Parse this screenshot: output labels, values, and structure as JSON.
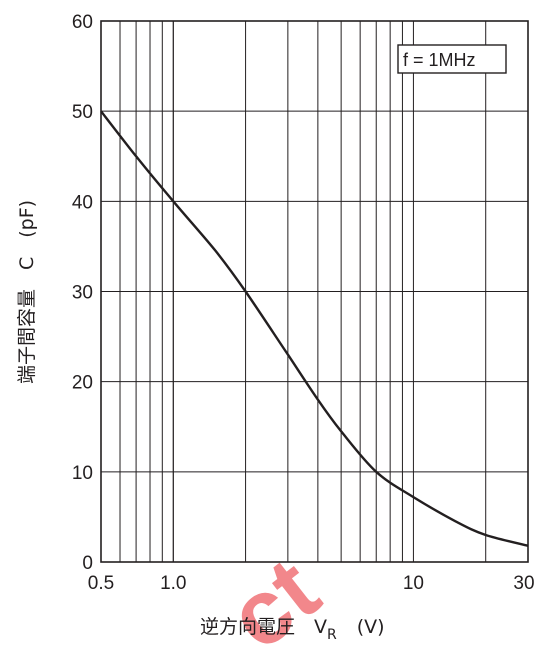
{
  "chart_data": {
    "type": "line",
    "title": "",
    "xlabel": "逆方向電圧　V",
    "xlabel_subscript": "R",
    "xlabel_unit": "(V)",
    "ylabel": "端子間容量　C　(pF)",
    "x_scale": "log",
    "y_scale": "linear",
    "xlim": [
      0.5,
      30
    ],
    "ylim": [
      0,
      60
    ],
    "grid": true,
    "x_tick_labels": [
      {
        "value": 0.5,
        "label": "0.5"
      },
      {
        "value": 1,
        "label": "1.0"
      },
      {
        "value": 10,
        "label": "10"
      },
      {
        "value": 30,
        "label": "30"
      }
    ],
    "y_ticks": [
      0,
      10,
      20,
      30,
      40,
      50,
      60
    ],
    "annotation": "f = 1MHz",
    "series": [
      {
        "x": [
          0.5,
          0.7,
          1.0,
          1.5,
          2.0,
          3.0,
          4.0,
          5.0,
          7.0,
          10.0,
          15.0,
          20.0,
          30.0
        ],
        "y": [
          50,
          45,
          40,
          34.5,
          30,
          23,
          18,
          14.5,
          10,
          7.2,
          4.5,
          3,
          1.8
        ]
      }
    ],
    "colors": {
      "line": "#231f20",
      "grid": "#231f20",
      "watermark": "#e8262e"
    }
  },
  "watermark": "ct"
}
